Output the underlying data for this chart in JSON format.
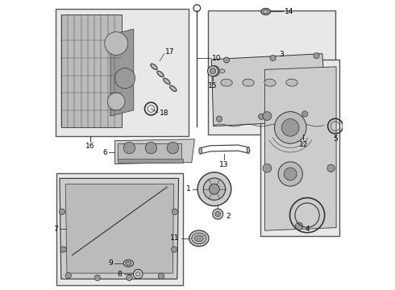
{
  "bg_color": "#ffffff",
  "line_color": "#333333",
  "text_color": "#000000",
  "box_fill": "#e8e8e8",
  "part_fill": "#cccccc",
  "part_fill2": "#bbbbbb",
  "part_fill3": "#999999"
}
